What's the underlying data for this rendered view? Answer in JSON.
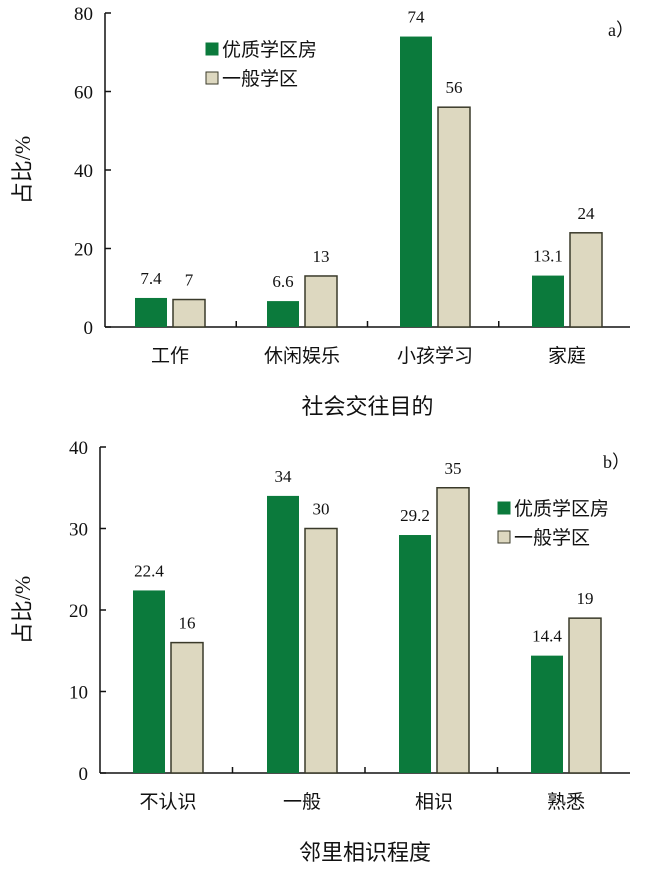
{
  "colors": {
    "series1": "#0b7a3c",
    "series2": "#ddd8c0",
    "series2_border": "#3a3a2a"
  },
  "chart_data": [
    {
      "type": "bar",
      "panel": "a）",
      "xlabel": "社会交往目的",
      "ylabel": "占比/%",
      "ylim": [
        0,
        80
      ],
      "yticks": [
        0,
        20,
        40,
        60,
        80
      ],
      "categories": [
        "工作",
        "休闲娱乐",
        "小孩学习",
        "家庭"
      ],
      "series": [
        {
          "name": "优质学区房",
          "values": [
            7.4,
            6.6,
            74,
            13.1
          ],
          "labels": [
            "7.4",
            "6.6",
            "74",
            "13.1"
          ]
        },
        {
          "name": "一般学区",
          "values": [
            7,
            13,
            56,
            24
          ],
          "labels": [
            "7",
            "13",
            "56",
            "24"
          ]
        }
      ],
      "legend": "top-center"
    },
    {
      "type": "bar",
      "panel": "b）",
      "xlabel": "邻里相识程度",
      "ylabel": "占比/%",
      "ylim": [
        0,
        40
      ],
      "yticks": [
        0,
        10,
        20,
        30,
        40
      ],
      "categories": [
        "不认识",
        "一般",
        "相识",
        "熟悉"
      ],
      "series": [
        {
          "name": "优质学区房",
          "values": [
            22.4,
            34,
            29.2,
            14.4
          ],
          "labels": [
            "22.4",
            "34",
            "29.2",
            "14.4"
          ]
        },
        {
          "name": "一般学区",
          "values": [
            16,
            30,
            35,
            19
          ],
          "labels": [
            "16",
            "30",
            "35",
            "19"
          ]
        }
      ],
      "legend": "right"
    }
  ]
}
